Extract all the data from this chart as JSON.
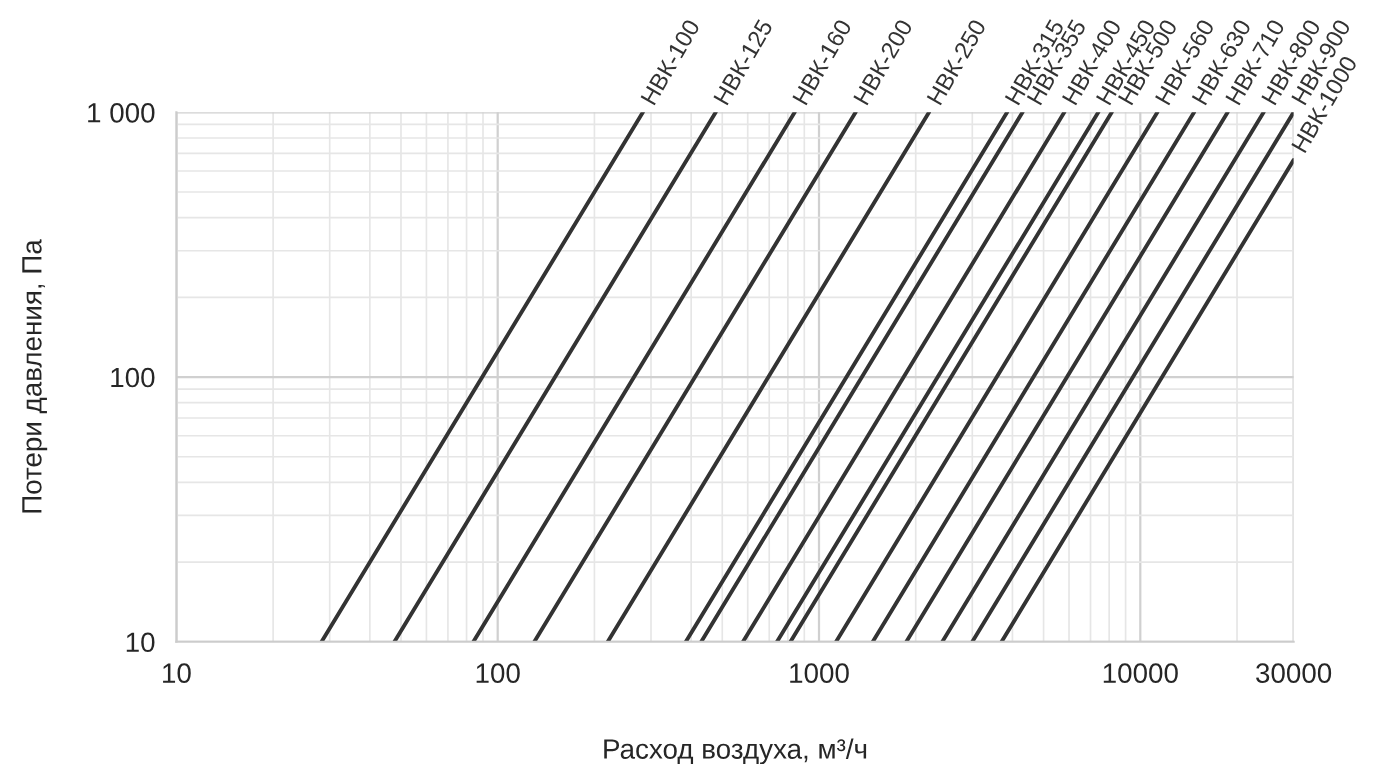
{
  "chart_data": {
    "type": "line",
    "xlabel": "Расход воздуха, м³/ч",
    "ylabel": "Потери давления, Па",
    "log": "xy",
    "grid": true,
    "legend": false,
    "marker": "none",
    "line_style": "solid",
    "xlim": [
      10,
      30000
    ],
    "xticks": [
      10,
      100,
      1000,
      10000,
      30000
    ],
    "ylim": [
      10,
      1000
    ],
    "yticks": [
      10,
      100,
      {
        "value": 1000,
        "label": "1 000"
      }
    ],
    "series": [
      {
        "name": "НВК-100",
        "color": "#333333",
        "x": [
          28.3,
          283
        ],
        "values": [
          10,
          1000
        ]
      },
      {
        "name": "НВК-125",
        "color": "#333333",
        "x": [
          47.7,
          477
        ],
        "values": [
          10,
          1000
        ]
      },
      {
        "name": "НВК-160",
        "color": "#333333",
        "x": [
          84,
          840
        ],
        "values": [
          10,
          1000
        ]
      },
      {
        "name": "НВК-200",
        "color": "#333333",
        "x": [
          130,
          1300
        ],
        "values": [
          10,
          1000
        ]
      },
      {
        "name": "НВК-250",
        "color": "#333333",
        "x": [
          220,
          2200
        ],
        "values": [
          10,
          1000
        ]
      },
      {
        "name": "НВК-315",
        "color": "#333333",
        "x": [
          385,
          3850
        ],
        "values": [
          10,
          1000
        ]
      },
      {
        "name": "НВК-355",
        "color": "#333333",
        "x": [
          430,
          4300
        ],
        "values": [
          10,
          1000
        ]
      },
      {
        "name": "НВК-400",
        "color": "#333333",
        "x": [
          580,
          5800
        ],
        "values": [
          10,
          1000
        ]
      },
      {
        "name": "НВК-450",
        "color": "#333333",
        "x": [
          740,
          7400
        ],
        "values": [
          10,
          1000
        ]
      },
      {
        "name": "НВК-500",
        "color": "#333333",
        "x": [
          815,
          8150
        ],
        "values": [
          10,
          1000
        ]
      },
      {
        "name": "НВК-560",
        "color": "#333333",
        "x": [
          1130,
          11300
        ],
        "values": [
          10,
          1000
        ]
      },
      {
        "name": "НВК-630",
        "color": "#333333",
        "x": [
          1470,
          14700
        ],
        "values": [
          10,
          1000
        ]
      },
      {
        "name": "НВК-710",
        "color": "#333333",
        "x": [
          1870,
          18700
        ],
        "values": [
          10,
          1000
        ]
      },
      {
        "name": "НВК-800",
        "color": "#333333",
        "x": [
          2420,
          24200
        ],
        "values": [
          10,
          1000
        ]
      },
      {
        "name": "НВК-900",
        "color": "#333333",
        "x": [
          3000,
          30000
        ],
        "values": [
          10,
          1000
        ]
      },
      {
        "name": "НВК-1000",
        "color": "#333333",
        "x": [
          3700,
          30000
        ],
        "values": [
          10,
          660
        ]
      }
    ]
  }
}
